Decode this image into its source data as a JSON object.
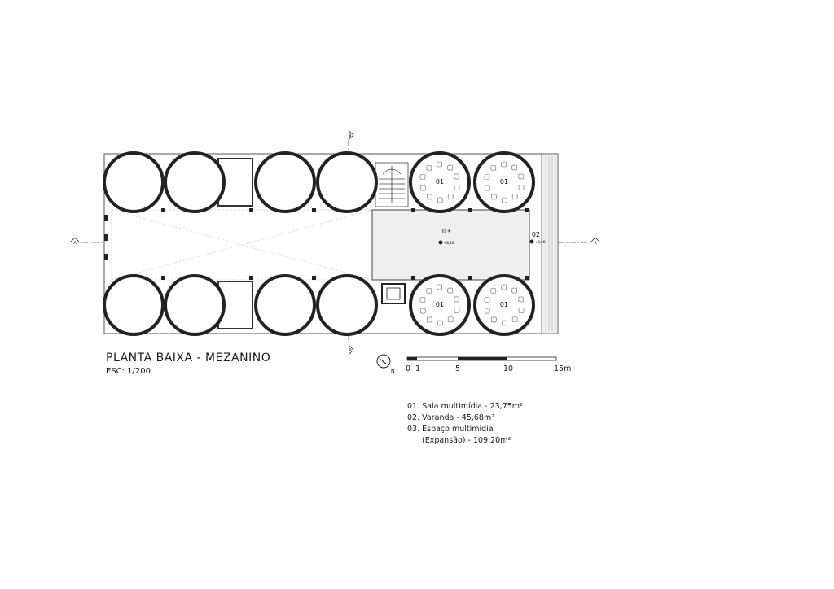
{
  "drawing": {
    "title": "PLANTA BAIXA - MEZANINO",
    "scale": "ESC: 1/200",
    "north_label": "N"
  },
  "scale_bar": {
    "labels": [
      "0",
      "1",
      "5",
      "10",
      "15m"
    ]
  },
  "section_marks": {
    "vertical": "B",
    "horizontal": "A"
  },
  "rooms": {
    "sala": "01",
    "varanda": "02",
    "espaco": "03",
    "level_03": "+8,10",
    "level_02": "+8,00"
  },
  "legend": {
    "item1": "01. Sala multimídia - 23,75m²",
    "item2": "02. Varanda - 45,68m²",
    "item3a": "03. Espaço multimídia",
    "item3b": "(Expansão) - 109,20m²"
  }
}
